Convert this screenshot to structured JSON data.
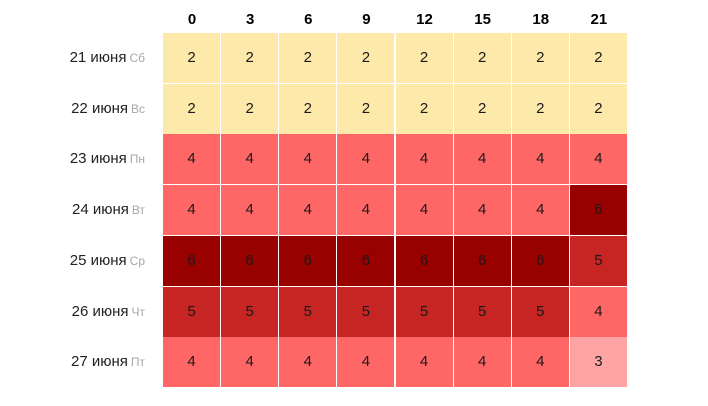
{
  "hours": [
    "0",
    "3",
    "6",
    "9",
    "12",
    "15",
    "18",
    "21"
  ],
  "rows": [
    {
      "date": "21 июня",
      "weekday": "Сб",
      "values": [
        2,
        2,
        2,
        2,
        2,
        2,
        2,
        2
      ]
    },
    {
      "date": "22 июня",
      "weekday": "Вс",
      "values": [
        2,
        2,
        2,
        2,
        2,
        2,
        2,
        2
      ]
    },
    {
      "date": "23 июня",
      "weekday": "Пн",
      "values": [
        4,
        4,
        4,
        4,
        4,
        4,
        4,
        4
      ]
    },
    {
      "date": "24 июня",
      "weekday": "Вт",
      "values": [
        4,
        4,
        4,
        4,
        4,
        4,
        4,
        6
      ]
    },
    {
      "date": "25 июня",
      "weekday": "Ср",
      "values": [
        6,
        6,
        6,
        6,
        6,
        6,
        6,
        5
      ]
    },
    {
      "date": "26 июня",
      "weekday": "Чт",
      "values": [
        5,
        5,
        5,
        5,
        5,
        5,
        5,
        4
      ]
    },
    {
      "date": "27 июня",
      "weekday": "Пт",
      "values": [
        4,
        4,
        4,
        4,
        4,
        4,
        4,
        3
      ]
    }
  ],
  "level_colors": {
    "2": "#fde9a9",
    "3": "#ffa4a4",
    "4": "#ff6666",
    "5": "#c72424",
    "6": "#990000"
  }
}
